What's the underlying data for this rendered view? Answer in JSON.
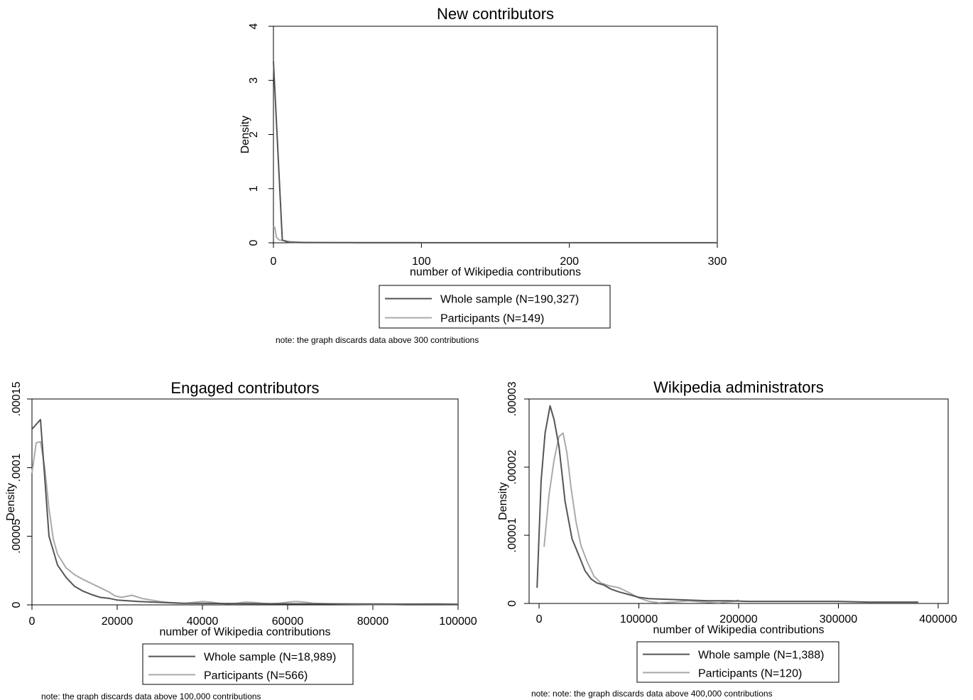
{
  "colors": {
    "whole_sample": "#555555",
    "participants": "#aaaaaa",
    "frame": "#000000"
  },
  "chart_data": [
    {
      "id": "new",
      "type": "line",
      "title": "New contributors",
      "xlabel": "number of Wikipedia contributions",
      "ylabel": "Density",
      "xlim": [
        0,
        300
      ],
      "ylim": [
        0,
        4
      ],
      "xticks": [
        0,
        100,
        200,
        300
      ],
      "xtick_labels": [
        "0",
        "100",
        "200",
        "300"
      ],
      "yticks": [
        0,
        1,
        2,
        3,
        4
      ],
      "ytick_labels": [
        "0",
        "1",
        "2",
        "3",
        "4"
      ],
      "legend": [
        "Whole sample (N=190,327)",
        "Participants (N=149)"
      ],
      "note": "note: the graph discards data above 300 contributions",
      "series": [
        {
          "name": "Whole sample (N=190,327)",
          "color_key": "whole_sample",
          "x": [
            0,
            6,
            10,
            20,
            50,
            100,
            150,
            200,
            250,
            300
          ],
          "y": [
            3.35,
            0.05,
            0.01,
            0.004,
            0.002,
            0.001,
            0.001,
            0.001,
            0.001,
            0.001
          ]
        },
        {
          "name": "Participants (N=149)",
          "color_key": "participants",
          "x": [
            0,
            1,
            2,
            4,
            7,
            12,
            20,
            40,
            60,
            100
          ],
          "y": [
            0.3,
            0.28,
            0.1,
            0.05,
            0.04,
            0.02,
            0.01,
            0.005,
            0.004,
            0.002
          ]
        }
      ]
    },
    {
      "id": "engaged",
      "type": "line",
      "title": "Engaged contributors",
      "xlabel": "number of Wikipedia contributions",
      "ylabel": "Density",
      "xlim": [
        0,
        100000
      ],
      "ylim": [
        0,
        0.00015
      ],
      "xticks": [
        0,
        20000,
        40000,
        60000,
        80000,
        100000
      ],
      "xtick_labels": [
        "0",
        "20000",
        "40000",
        "60000",
        "80000",
        "100000"
      ],
      "yticks": [
        0,
        5e-05,
        0.0001,
        0.00015
      ],
      "ytick_labels": [
        "0",
        ".00005",
        ".0001",
        ".00015"
      ],
      "legend": [
        "Whole sample (N=18,989)",
        "Participants (N=566)"
      ],
      "note": "note: the graph discards data above 100,000 contributions",
      "series": [
        {
          "name": "Whole sample (N=18,989)",
          "color_key": "whole_sample",
          "x": [
            0,
            2000,
            4000,
            6000,
            8000,
            10000,
            12000,
            14000,
            16000,
            18000,
            20000,
            25000,
            30000,
            35000,
            40000,
            50000,
            60000,
            70000,
            80000,
            90000,
            100000
          ],
          "y": [
            0.000128,
            0.000135,
            5e-05,
            2.9e-05,
            2e-05,
            1.35e-05,
            1e-05,
            7.5e-06,
            5.5e-06,
            4.8e-06,
            3.5e-06,
            2.5e-06,
            1.8e-06,
            1.2e-06,
            1.1e-06,
            9e-07,
            8e-07,
            7e-07,
            6e-07,
            5e-07,
            4e-07
          ]
        },
        {
          "name": "Participants (N=566)",
          "color_key": "participants",
          "x": [
            0,
            1000,
            2000,
            3000,
            4000,
            5000,
            6000,
            8000,
            10000,
            12000,
            14000,
            16000,
            18000,
            19500,
            21000,
            23500,
            26000,
            28000,
            30000,
            32000,
            34000,
            36000,
            38000,
            40000,
            42000,
            44000,
            46000,
            48000,
            50000,
            52000,
            54000,
            56000,
            58000,
            60000,
            62000,
            64000,
            66000,
            70000,
            75000,
            80000,
            85000,
            90000,
            95000,
            98000,
            100000
          ],
          "y": [
            9.6e-05,
            0.000118,
            0.000119,
            0.0001,
            7e-05,
            4.8e-05,
            3.7e-05,
            2.7e-05,
            2.2e-05,
            1.85e-05,
            1.55e-05,
            1.25e-05,
            9.5e-06,
            6.5e-06,
            5.5e-06,
            7e-06,
            4.5e-06,
            3.5e-06,
            2.5e-06,
            1.8e-06,
            1.5e-06,
            1.2e-06,
            1.8e-06,
            2.5e-06,
            2e-06,
            1.2e-06,
            8e-07,
            1.2e-06,
            2e-06,
            1.8e-06,
            1.2e-06,
            8e-07,
            1.2e-06,
            2e-06,
            2.5e-06,
            2e-06,
            1.2e-06,
            8e-07,
            5e-07,
            4e-07,
            4e-07,
            6e-07,
            8e-07,
            6e-07,
            5e-07
          ]
        }
      ]
    },
    {
      "id": "admins",
      "type": "line",
      "title": "Wikipedia administrators",
      "xlabel": "number of Wikipedia contributions",
      "ylabel": "Density",
      "xlim": [
        -10000,
        410000
      ],
      "ylim": [
        0,
        3e-05
      ],
      "xticks": [
        0,
        100000,
        200000,
        300000,
        400000
      ],
      "xtick_labels": [
        "0",
        "100000",
        "200000",
        "300000",
        "400000"
      ],
      "yticks": [
        0,
        1e-05,
        2e-05,
        3e-05
      ],
      "ytick_labels": [
        "0",
        ".00001",
        ".00002",
        ".00003"
      ],
      "legend": [
        "Whole sample (N=1,388)",
        "Participants (N=120)"
      ],
      "note": "note: note: the graph discards data above 400,000 contributions",
      "series": [
        {
          "name": "Whole sample (N=1,388)",
          "color_key": "whole_sample",
          "x": [
            -2000,
            2000,
            6000,
            11000,
            15000,
            20000,
            26000,
            33000,
            40000,
            46000,
            52000,
            58000,
            65000,
            72000,
            80000,
            90000,
            100000,
            110000,
            130000,
            150000,
            170000,
            190000,
            210000,
            240000,
            270000,
            300000,
            330000,
            360000,
            380000
          ],
          "y": [
            2.3e-06,
            1.8e-05,
            2.5e-05,
            2.9e-05,
            2.7e-05,
            2.3e-05,
            1.5e-05,
            9.5e-06,
            7e-06,
            4.8e-06,
            3.6e-06,
            3e-06,
            2.7e-06,
            2.1e-06,
            1.7e-06,
            1.3e-06,
            9e-07,
            7e-07,
            6e-07,
            5e-07,
            4e-07,
            4e-07,
            3e-07,
            3e-07,
            3e-07,
            3e-07,
            2e-07,
            2e-07,
            2e-07
          ]
        },
        {
          "name": "Participants (N=120)",
          "color_key": "participants",
          "x": [
            5000,
            10000,
            15000,
            20000,
            24000,
            28000,
            32000,
            37000,
            42000,
            48000,
            55000,
            62000,
            70000,
            80000,
            90000,
            100000,
            110000,
            120000,
            135000,
            150000,
            165000,
            180000,
            195000,
            200000
          ],
          "y": [
            8.3e-06,
            1.6e-05,
            2.1e-05,
            2.45e-05,
            2.5e-05,
            2.2e-05,
            1.7e-05,
            1.2e-05,
            8.5e-06,
            6.2e-06,
            4e-06,
            3e-06,
            2.6e-06,
            2.3e-06,
            1.6e-06,
            8e-07,
            3e-07,
            1e-07,
            2e-07,
            4e-07,
            2e-07,
            1e-07,
            3e-07,
            5e-07
          ]
        }
      ]
    }
  ]
}
